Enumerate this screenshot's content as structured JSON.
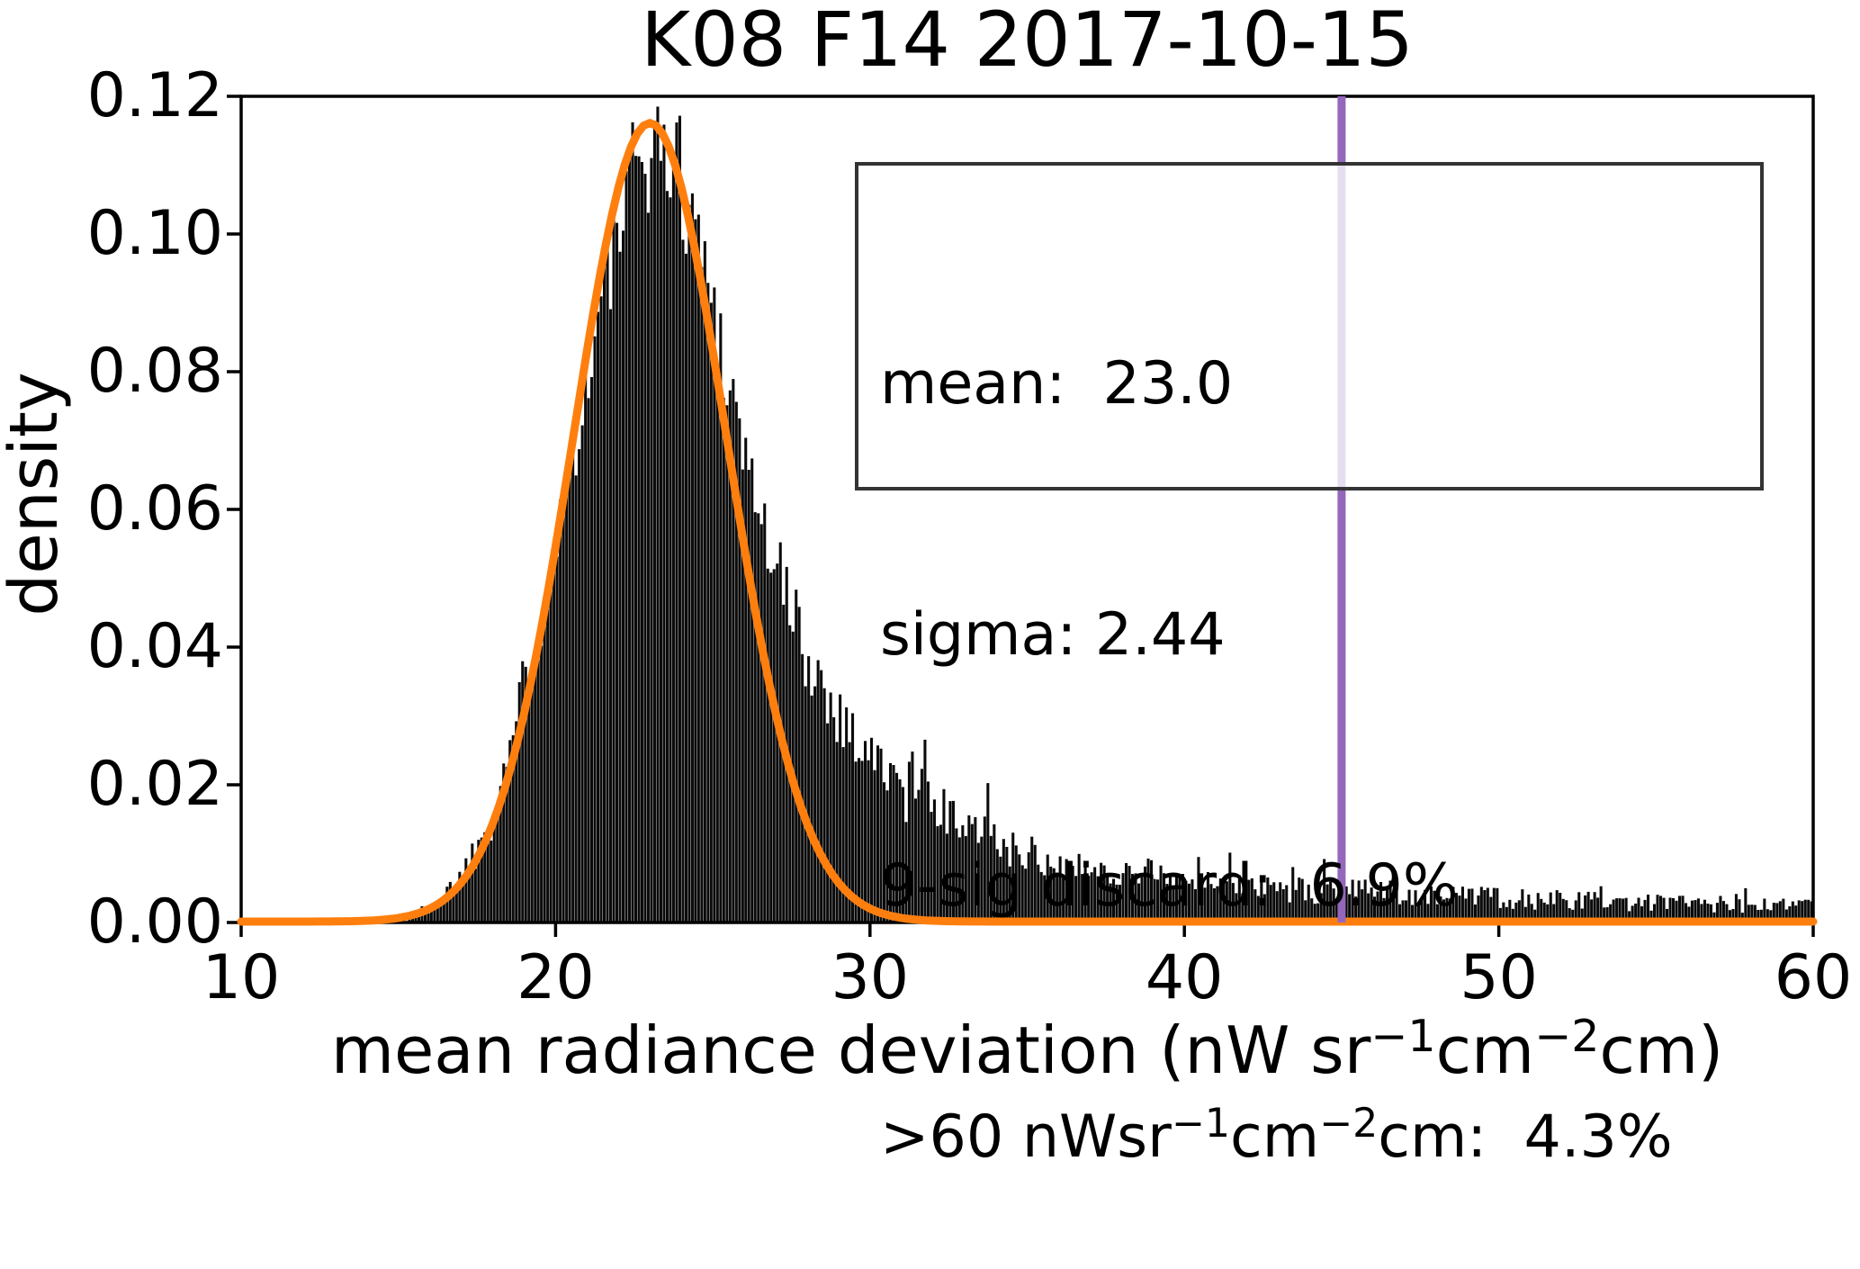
{
  "figure": {
    "title": "K08 F14 2017-10-15",
    "ylabel": "density",
    "xlabel_parts": [
      {
        "text": "mean radiance deviation (nW sr",
        "sup": false
      },
      {
        "text": "−1",
        "sup": true
      },
      {
        "text": "cm",
        "sup": false
      },
      {
        "text": "−2",
        "sup": true
      },
      {
        "text": "cm)",
        "sup": false
      }
    ]
  },
  "annotation_box": {
    "line1": "mean:  23.0",
    "line2": "sigma: 2.44",
    "line3": "9-sig discard:  6.9%",
    "line4_parts": [
      {
        "text": ">60 nWsr",
        "sup": false
      },
      {
        "text": "−1",
        "sup": true
      },
      {
        "text": "cm",
        "sup": false
      },
      {
        "text": "−2",
        "sup": true
      },
      {
        "text": "cm:  4.3%",
        "sup": false
      }
    ]
  },
  "chart_data": {
    "type": "bar",
    "subtype": "histogram-with-gaussian-fit",
    "title": "K08 F14 2017-10-15",
    "xlabel": "mean radiance deviation (nW sr^-1 cm^-2 cm)",
    "ylabel": "density",
    "xlim": [
      10,
      60
    ],
    "ylim": [
      0,
      0.12
    ],
    "xticks": [
      "10",
      "20",
      "30",
      "40",
      "50",
      "60"
    ],
    "yticks": [
      "0.00",
      "0.02",
      "0.04",
      "0.06",
      "0.08",
      "0.10",
      "0.12"
    ],
    "grid": false,
    "legend": "none",
    "bar_color": "#0a0a0a",
    "bin_width": 0.1,
    "density_envelope": [
      [
        14.6,
        0.0003
      ],
      [
        15.0,
        0.0006
      ],
      [
        15.5,
        0.0012
      ],
      [
        16.0,
        0.0022
      ],
      [
        16.5,
        0.004
      ],
      [
        17.0,
        0.007
      ],
      [
        17.5,
        0.011
      ],
      [
        18.0,
        0.017
      ],
      [
        18.5,
        0.025
      ],
      [
        19.0,
        0.034
      ],
      [
        19.5,
        0.0445
      ],
      [
        20.0,
        0.0555
      ],
      [
        20.5,
        0.067
      ],
      [
        21.0,
        0.079
      ],
      [
        21.5,
        0.0905
      ],
      [
        22.0,
        0.1
      ],
      [
        22.5,
        0.108
      ],
      [
        23.0,
        0.1135
      ],
      [
        23.4,
        0.114
      ],
      [
        24.0,
        0.1085
      ],
      [
        24.5,
        0.1005
      ],
      [
        25.0,
        0.0905
      ],
      [
        25.5,
        0.0795
      ],
      [
        26.0,
        0.069
      ],
      [
        26.5,
        0.0595
      ],
      [
        27.0,
        0.051
      ],
      [
        27.5,
        0.0445
      ],
      [
        28.0,
        0.039
      ],
      [
        28.5,
        0.0345
      ],
      [
        29.0,
        0.0305
      ],
      [
        29.5,
        0.027
      ],
      [
        30.0,
        0.0245
      ],
      [
        30.5,
        0.022
      ],
      [
        31.0,
        0.0198
      ],
      [
        31.5,
        0.018
      ],
      [
        32.0,
        0.0164
      ],
      [
        33.0,
        0.0137
      ],
      [
        34.0,
        0.0116
      ],
      [
        35.0,
        0.01
      ],
      [
        36.0,
        0.0089
      ],
      [
        37.0,
        0.008
      ],
      [
        38.0,
        0.0073
      ],
      [
        39.0,
        0.0067
      ],
      [
        40.0,
        0.0062
      ],
      [
        41.0,
        0.0058
      ],
      [
        42.0,
        0.0054
      ],
      [
        43.0,
        0.0051
      ],
      [
        44.0,
        0.0048
      ],
      [
        45.0,
        0.0046
      ],
      [
        46.0,
        0.0043
      ],
      [
        47.0,
        0.0041
      ],
      [
        48.0,
        0.0039
      ],
      [
        49.0,
        0.0037
      ],
      [
        50.0,
        0.0036
      ],
      [
        51.0,
        0.0034
      ],
      [
        52.0,
        0.0033
      ],
      [
        53.0,
        0.0031
      ],
      [
        54.0,
        0.003
      ],
      [
        55.0,
        0.0029
      ],
      [
        56.0,
        0.0028
      ],
      [
        57.0,
        0.0026
      ],
      [
        58.0,
        0.0025
      ],
      [
        59.0,
        0.0024
      ],
      [
        60.0,
        0.0023
      ]
    ],
    "gaussian_fit": {
      "mean": 23.0,
      "sigma": 2.44,
      "peak_density": 0.116,
      "color": "#ff7f0e"
    },
    "vline": {
      "x": 45,
      "color": "#9467bd"
    },
    "stats": {
      "mean": 23.0,
      "sigma": 2.44,
      "nine_sig_discard_pct": 6.9,
      "gt60_pct": 4.3
    }
  }
}
